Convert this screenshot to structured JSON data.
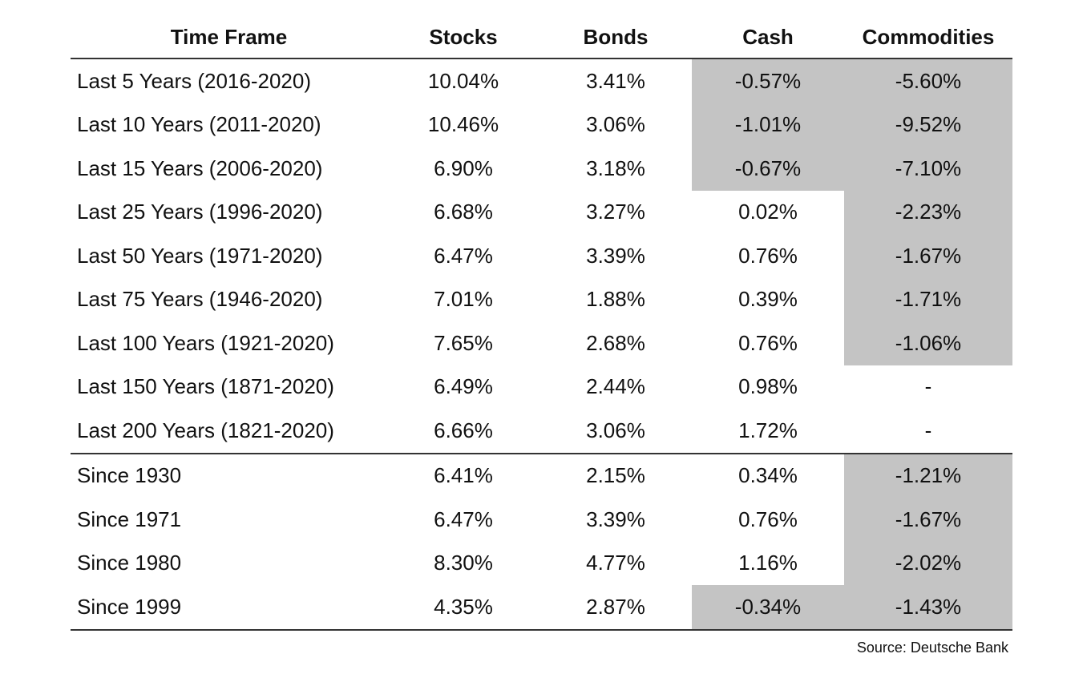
{
  "table": {
    "header": [
      "Time Frame",
      "Stocks",
      "Bonds",
      "Cash",
      "Commodities"
    ],
    "sections": [
      [
        [
          "Last 5 Years (2016-2020)",
          "10.04%",
          "3.41%",
          "-0.57%",
          "-5.60%"
        ],
        [
          "Last 10 Years (2011-2020)",
          "10.46%",
          "3.06%",
          "-1.01%",
          "-9.52%"
        ],
        [
          "Last 15 Years (2006-2020)",
          "6.90%",
          "3.18%",
          "-0.67%",
          "-7.10%"
        ],
        [
          "Last 25 Years (1996-2020)",
          "6.68%",
          "3.27%",
          "0.02%",
          "-2.23%"
        ],
        [
          "Last 50 Years (1971-2020)",
          "6.47%",
          "3.39%",
          "0.76%",
          "-1.67%"
        ],
        [
          "Last 75 Years (1946-2020)",
          "7.01%",
          "1.88%",
          "0.39%",
          "-1.71%"
        ],
        [
          "Last 100 Years (1921-2020)",
          "7.65%",
          "2.68%",
          "0.76%",
          "-1.06%"
        ],
        [
          "Last 150 Years (1871-2020)",
          "6.49%",
          "2.44%",
          "0.98%",
          "-"
        ],
        [
          "Last 200 Years (1821-2020)",
          "6.66%",
          "3.06%",
          "1.72%",
          "-"
        ]
      ],
      [
        [
          "Since 1930",
          "6.41%",
          "2.15%",
          "0.34%",
          "-1.21%"
        ],
        [
          "Since 1971",
          "6.47%",
          "3.39%",
          "0.76%",
          "-1.67%"
        ],
        [
          "Since 1980",
          "8.30%",
          "4.77%",
          "1.16%",
          "-2.02%"
        ],
        [
          "Since 1999",
          "4.35%",
          "2.87%",
          "-0.34%",
          "-1.43%"
        ]
      ]
    ]
  },
  "source": "Source: Deutsche Bank"
}
